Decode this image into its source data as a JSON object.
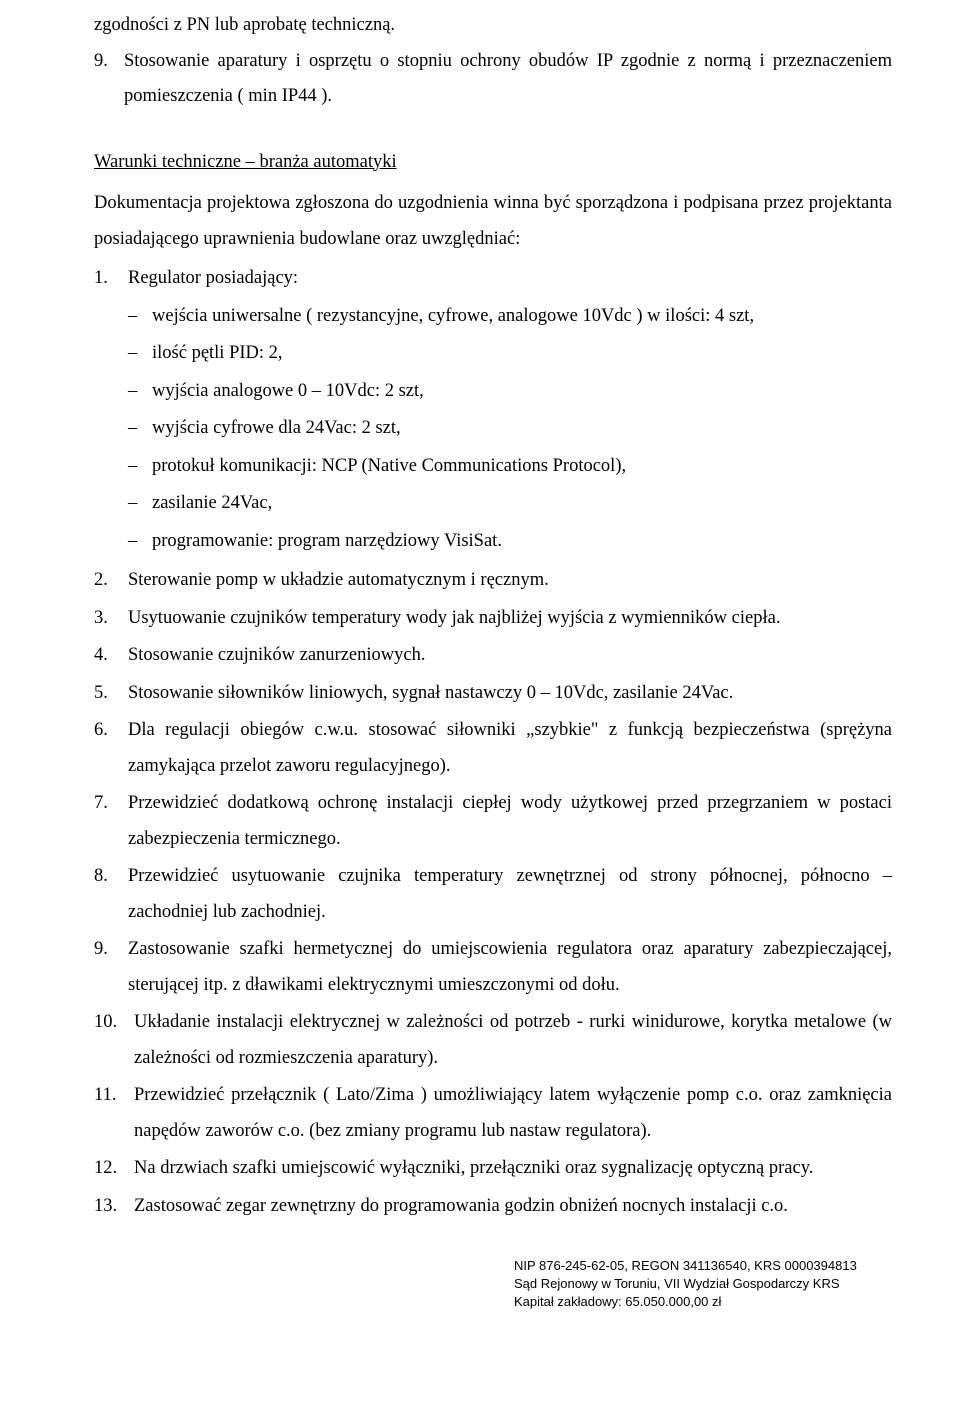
{
  "continuation": {
    "tail": "zgodności z PN lub aprobatę techniczną.",
    "item9_num": "9.",
    "item9_text": "Stosowanie aparatury i osprzętu o stopniu ochrony obudów IP zgodnie z normą i przeznaczeniem pomieszczenia ( min IP44 )."
  },
  "section_title": "Warunki techniczne – branża automatyki",
  "intro": "Dokumentacja projektowa zgłoszona do uzgodnienia winna być sporządzona i podpisana przez projektanta posiadającego uprawnienia budowlane oraz uwzględniać:",
  "items": [
    {
      "num": "1.",
      "text": "Regulator posiadający:",
      "sub": [
        "wejścia uniwersalne ( rezystancyjne, cyfrowe, analogowe 10Vdc ) w ilości: 4 szt,",
        "ilość pętli PID: 2,",
        "wyjścia analogowe 0 – 10Vdc: 2 szt,",
        "wyjścia cyfrowe dla 24Vac: 2 szt,",
        "protokuł komunikacji: NCP (Native Communications Protocol),",
        "zasilanie 24Vac,",
        "programowanie: program narzędziowy VisiSat."
      ]
    },
    {
      "num": "2.",
      "text": "Sterowanie pomp w układzie automatycznym i ręcznym."
    },
    {
      "num": "3.",
      "text": "Usytuowanie czujników temperatury wody jak najbliżej wyjścia z wymienników ciepła."
    },
    {
      "num": "4.",
      "text": "Stosowanie czujników zanurzeniowych."
    },
    {
      "num": "5.",
      "text": "Stosowanie siłowników liniowych,  sygnał nastawczy 0 – 10Vdc, zasilanie 24Vac."
    },
    {
      "num": "6.",
      "text": "Dla regulacji obiegów c.w.u. stosować siłowniki „szybkie\" z funkcją bezpieczeństwa (sprężyna zamykająca przelot zaworu regulacyjnego)."
    },
    {
      "num": "7.",
      "text": "Przewidzieć dodatkową ochronę instalacji ciepłej wody użytkowej przed przegrzaniem w postaci zabezpieczenia termicznego."
    },
    {
      "num": "8.",
      "text": "Przewidzieć usytuowanie czujnika temperatury zewnętrznej od strony północnej, północno – zachodniej lub zachodniej."
    },
    {
      "num": "9.",
      "text": "Zastosowanie szafki hermetycznej do umiejscowienia regulatora oraz aparatury zabezpieczającej, sterującej itp. z dławikami elektrycznymi umieszczonymi od dołu."
    },
    {
      "num": "10.",
      "text": "Układanie instalacji elektrycznej w zależności od potrzeb - rurki winidurowe, korytka  metalowe (w zależności od  rozmieszczenia aparatury).",
      "wide": true
    },
    {
      "num": "11.",
      "text": "Przewidzieć przełącznik ( Lato/Zima ) umożliwiający latem wyłączenie pomp c.o. oraz zamknięcia napędów zaworów c.o. (bez zmiany programu lub nastaw regulatora).",
      "wide": true
    },
    {
      "num": "12.",
      "text": "Na drzwiach szafki umiejscowić wyłączniki, przełączniki oraz sygnalizację optyczną pracy.",
      "wide": true
    },
    {
      "num": "13.",
      "text": "Zastosować zegar zewnętrzny do programowania godzin obniżeń nocnych instalacji c.o.",
      "wide": true
    }
  ],
  "footer": {
    "line1": "NIP 876-245-62-05, REGON 341136540, KRS 0000394813",
    "line2": "Sąd Rejonowy w Toruniu, VII Wydział Gospodarczy KRS",
    "line3": "Kapitał zakładowy: 65.050.000,00 zł"
  }
}
